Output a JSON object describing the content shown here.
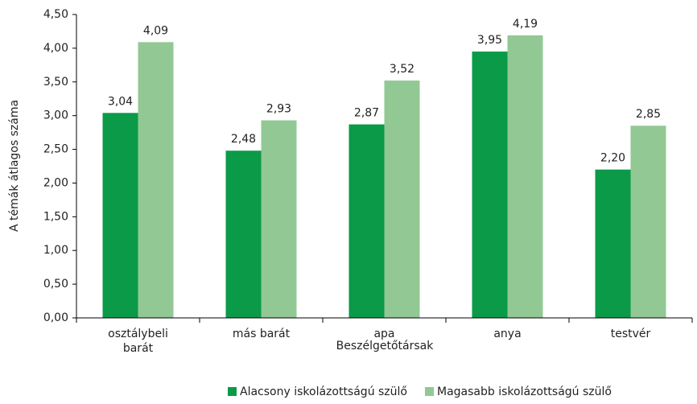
{
  "chart_data": {
    "type": "bar",
    "categories": [
      "osztálybeli barát",
      "más barát",
      "apa",
      "anya",
      "testvér"
    ],
    "series": [
      {
        "name": "Alacsony iskolázottságú szülő",
        "color": "#0a9a48",
        "values": [
          3.04,
          2.48,
          2.87,
          3.95,
          2.2
        ],
        "value_labels": [
          "3,04",
          "2,48",
          "2,87",
          "3,95",
          "2,20"
        ]
      },
      {
        "name": "Magasabb iskolázottságú szülő",
        "color": "#92c894",
        "values": [
          4.09,
          2.93,
          3.52,
          4.19,
          2.85
        ],
        "value_labels": [
          "4,09",
          "2,93",
          "3,52",
          "4,19",
          "2,85"
        ]
      }
    ],
    "ylim": [
      0,
      4.5
    ],
    "yticks": [
      {
        "value": 0,
        "label": "0,00"
      },
      {
        "value": 0.5,
        "label": "0,50"
      },
      {
        "value": 1,
        "label": "1,00"
      },
      {
        "value": 1.5,
        "label": "1,50"
      },
      {
        "value": 2,
        "label": "2,00"
      },
      {
        "value": 2.5,
        "label": "2,50"
      },
      {
        "value": 3,
        "label": "3,00"
      },
      {
        "value": 3.5,
        "label": "3,50"
      },
      {
        "value": 4,
        "label": "4,00"
      },
      {
        "value": 4.5,
        "label": "4,50"
      }
    ],
    "xlabel": "Beszélgetőtársak",
    "ylabel": "A témák átlagos száma",
    "grid": false,
    "legend": "bottom"
  }
}
